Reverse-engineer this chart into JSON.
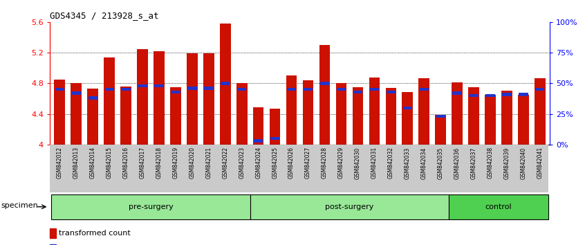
{
  "title": "GDS4345 / 213928_s_at",
  "samples": [
    "GSM842012",
    "GSM842013",
    "GSM842014",
    "GSM842015",
    "GSM842016",
    "GSM842017",
    "GSM842018",
    "GSM842019",
    "GSM842020",
    "GSM842021",
    "GSM842022",
    "GSM842023",
    "GSM842024",
    "GSM842025",
    "GSM842026",
    "GSM842027",
    "GSM842028",
    "GSM842029",
    "GSM842030",
    "GSM842031",
    "GSM842032",
    "GSM842033",
    "GSM842034",
    "GSM842035",
    "GSM842036",
    "GSM842037",
    "GSM842038",
    "GSM842039",
    "GSM842040",
    "GSM842041"
  ],
  "red_values": [
    4.85,
    4.8,
    4.73,
    5.14,
    4.76,
    5.25,
    5.22,
    4.75,
    5.19,
    5.19,
    5.58,
    4.8,
    4.49,
    4.47,
    4.9,
    4.84,
    5.3,
    4.8,
    4.75,
    4.88,
    4.74,
    4.69,
    4.87,
    4.39,
    4.81,
    4.75,
    4.65,
    4.7,
    4.65,
    4.87
  ],
  "percentile_values": [
    45,
    42,
    38,
    45,
    45,
    48,
    48,
    43,
    46,
    46,
    50,
    45,
    3,
    5,
    45,
    45,
    50,
    45,
    43,
    45,
    43,
    30,
    45,
    23,
    42,
    40,
    40,
    41,
    41,
    45
  ],
  "groups": [
    {
      "label": "pre-surgery",
      "start": 0,
      "end": 11,
      "color": "#98E898"
    },
    {
      "label": "post-surgery",
      "start": 12,
      "end": 23,
      "color": "#98E898"
    },
    {
      "label": "control",
      "start": 24,
      "end": 29,
      "color": "#50D050"
    }
  ],
  "ylim_left": [
    4.0,
    5.6
  ],
  "ylim_right": [
    0,
    100
  ],
  "y_ticks_left": [
    4.0,
    4.4,
    4.8,
    5.2,
    5.6
  ],
  "y_ticks_left_labels": [
    "4",
    "4.4",
    "4.8",
    "5.2",
    "5.6"
  ],
  "y_ticks_right": [
    0,
    25,
    50,
    75,
    100
  ],
  "y_ticks_right_labels": [
    "0%",
    "25%",
    "50%",
    "75%",
    "100%"
  ],
  "bar_color": "#CC1100",
  "blue_color": "#2233CC",
  "bar_width": 0.65,
  "grid_lines": [
    4.4,
    4.8,
    5.2
  ],
  "xtick_bg_color": "#C8C8C8"
}
